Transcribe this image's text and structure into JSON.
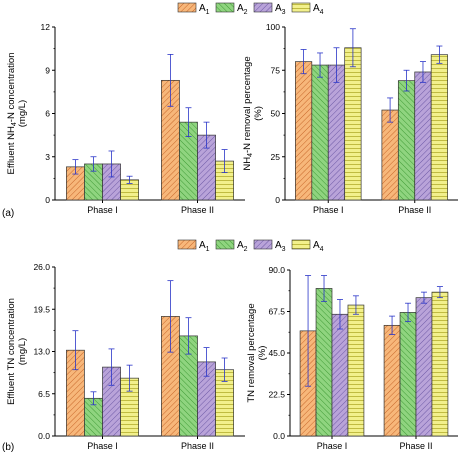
{
  "figure": {
    "panel_labels": [
      "(a)",
      "(b)"
    ],
    "legend": {
      "entries": [
        {
          "main": "A",
          "sub": "1",
          "color": "#f7b77a",
          "hatch": "#c7662a"
        },
        {
          "main": "A",
          "sub": "2",
          "color": "#8fd47f",
          "hatch": "#3f9a35"
        },
        {
          "main": "A",
          "sub": "3",
          "color": "#b9a3d9",
          "hatch": "#6d59a6"
        },
        {
          "main": "A",
          "sub": "4",
          "color": "#f2f08c",
          "hatch": "#b3ae2e"
        }
      ]
    }
  },
  "chart_data": [
    {
      "type": "bar",
      "panel": "(a)",
      "ylabel_lines": [
        [
          {
            "t": "Effluent NH"
          },
          {
            "t": "4",
            "sub": true
          },
          {
            "t": "-N concentration"
          }
        ],
        [
          {
            "t": "(mg/L)"
          }
        ]
      ],
      "categories": [
        "Phase I",
        "Phase II"
      ],
      "ylim": [
        0,
        12
      ],
      "yticks": [
        "0",
        "3",
        "6",
        "9",
        "12"
      ],
      "ytick_values": [
        0,
        3,
        6,
        9,
        12
      ],
      "series": [
        {
          "values": [
            2.3,
            8.3
          ],
          "errors": [
            0.5,
            1.8
          ]
        },
        {
          "values": [
            2.5,
            5.4
          ],
          "errors": [
            0.5,
            1.0
          ]
        },
        {
          "values": [
            2.5,
            4.5
          ],
          "errors": [
            0.9,
            0.9
          ]
        },
        {
          "values": [
            1.4,
            2.7
          ],
          "errors": [
            0.25,
            0.8
          ]
        }
      ]
    },
    {
      "type": "bar",
      "panel": "(a)",
      "ylabel_lines": [
        [
          {
            "t": "NH"
          },
          {
            "t": "4",
            "sub": true
          },
          {
            "t": "-N removal percentage"
          }
        ],
        [
          {
            "t": "(%)"
          }
        ]
      ],
      "categories": [
        "Phase I",
        "Phase II"
      ],
      "ylim": [
        0,
        100
      ],
      "yticks": [
        "0",
        "25",
        "50",
        "75",
        "100"
      ],
      "ytick_values": [
        0,
        25,
        50,
        75,
        100
      ],
      "series": [
        {
          "values": [
            80,
            52
          ],
          "errors": [
            7,
            7
          ]
        },
        {
          "values": [
            78,
            69
          ],
          "errors": [
            7,
            6
          ]
        },
        {
          "values": [
            78,
            74
          ],
          "errors": [
            10,
            6
          ]
        },
        {
          "values": [
            88,
            84
          ],
          "errors": [
            11,
            5
          ]
        }
      ]
    },
    {
      "type": "bar",
      "panel": "(b)",
      "ylabel_lines": [
        [
          {
            "t": "Effluent TN concentration"
          }
        ],
        [
          {
            "t": "(mg/L)"
          }
        ]
      ],
      "categories": [
        "Phase I",
        "Phase II"
      ],
      "ylim": [
        0,
        26
      ],
      "yticks": [
        "0.0",
        "6.5",
        "13.0",
        "19.5",
        "26.0"
      ],
      "ytick_values": [
        0,
        6.5,
        13,
        19.5,
        26
      ],
      "series": [
        {
          "values": [
            13.2,
            18.4
          ],
          "errors": [
            3.0,
            5.5
          ]
        },
        {
          "values": [
            5.8,
            15.4
          ],
          "errors": [
            1.0,
            2.8
          ]
        },
        {
          "values": [
            10.6,
            11.4
          ],
          "errors": [
            2.8,
            2.2
          ]
        },
        {
          "values": [
            8.9,
            10.2
          ],
          "errors": [
            2.0,
            1.8
          ]
        }
      ]
    },
    {
      "type": "bar",
      "panel": "(b)",
      "ylabel_lines": [
        [
          {
            "t": "TN removal percentage"
          }
        ],
        [
          {
            "t": "(%)"
          }
        ]
      ],
      "categories": [
        "Phase I",
        "Phase II"
      ],
      "ylim": [
        0,
        90
      ],
      "yticks": [
        "0.0",
        "22.5",
        "45.0",
        "67.5",
        "90.0"
      ],
      "ytick_values": [
        0,
        22.5,
        45,
        67.5,
        90
      ],
      "series": [
        {
          "values": [
            57,
            60
          ],
          "errors": [
            30,
            5
          ]
        },
        {
          "values": [
            80,
            67
          ],
          "errors": [
            7,
            5
          ]
        },
        {
          "values": [
            66,
            75
          ],
          "errors": [
            8,
            3
          ]
        },
        {
          "values": [
            71,
            78
          ],
          "errors": [
            5,
            3
          ]
        }
      ]
    }
  ]
}
